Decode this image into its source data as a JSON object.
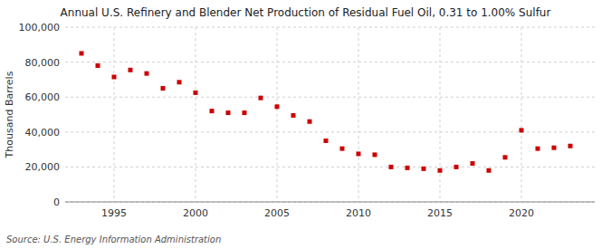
{
  "chart_data": {
    "type": "scatter",
    "title": "Annual U.S. Refinery and Blender Net Production of Residual Fuel Oil, 0.31 to 1.00% Sulfur",
    "ylabel": "Thousand Barrels",
    "source": "Source: U.S. Energy Information Administration",
    "x": [
      1993,
      1994,
      1995,
      1996,
      1997,
      1998,
      1999,
      2000,
      2001,
      2002,
      2003,
      2004,
      2005,
      2006,
      2007,
      2008,
      2009,
      2010,
      2011,
      2012,
      2013,
      2014,
      2015,
      2016,
      2017,
      2018,
      2019,
      2020,
      2021,
      2022,
      2023
    ],
    "values": [
      85000,
      78000,
      71500,
      75500,
      73500,
      65000,
      68500,
      62500,
      52000,
      51000,
      51000,
      59500,
      54500,
      49500,
      46000,
      35000,
      30500,
      27500,
      27000,
      20000,
      19500,
      19000,
      18000,
      20000,
      22000,
      18000,
      25500,
      41000,
      30500,
      31000,
      32000
    ],
    "color": "#CC0000",
    "marker": "square",
    "xlim": [
      1992.0,
      2024.5
    ],
    "xticks": [
      1995,
      2000,
      2005,
      2010,
      2015,
      2020
    ],
    "ylim": [
      0,
      100000
    ],
    "yticks": [
      0,
      {
        "value": 20000,
        "label": "20,000"
      },
      {
        "value": 40000,
        "label": "40,000"
      },
      {
        "value": 60000,
        "label": "60,000"
      },
      {
        "value": 80000,
        "label": "80,000"
      },
      {
        "value": 100000,
        "label": "100,000"
      }
    ],
    "grid": true
  }
}
